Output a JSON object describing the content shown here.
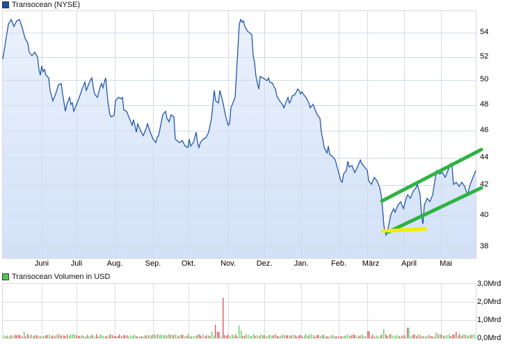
{
  "price_chart": {
    "legend_label": "Transocean (NYSE)",
    "legend_color": "#1a4f9c",
    "y_ticks": [
      "54",
      "52",
      "50",
      "48",
      "46",
      "44",
      "42",
      "40",
      "38"
    ],
    "x_ticks": [
      "Juni",
      "Juli",
      "Aug.",
      "Sep.",
      "Okt.",
      "Nov.",
      "Dez.",
      "Jan.",
      "Feb.",
      "März",
      "April",
      "Mai"
    ]
  },
  "volume_chart": {
    "legend_label": "Transocean Volumen in USD",
    "legend_color": "#55c455",
    "y_ticks": [
      "3,0Mrd",
      "2,0Mrd",
      "1,0Mrd",
      "0,0Mrd"
    ]
  },
  "annotations": {
    "upper_trend_color": "#2db341",
    "lower_trend_color": "#2db341",
    "support_line_color": "#f2ee00"
  },
  "chart_data": [
    {
      "type": "area",
      "title": "Transocean (NYSE)",
      "xlabel": "",
      "ylabel": "",
      "ylim": [
        37.5,
        55.5
      ],
      "grid": true,
      "legend_position": "top-left",
      "categories": [
        "Mai",
        "Juni",
        "Juli",
        "Aug.",
        "Sep.",
        "Okt.",
        "Nov.",
        "Dez.",
        "Jan.",
        "Feb.",
        "März",
        "April",
        "Mai"
      ],
      "series": [
        {
          "name": "Transocean (NYSE)",
          "values": [
            51.8,
            55.0,
            53.5,
            50.0,
            49.0,
            48.5,
            49.8,
            47.5,
            48.5,
            45.5,
            47.6,
            45.0,
            44.6,
            46.0,
            48.0,
            55.0,
            51.0,
            49.0,
            47.5,
            49.0,
            47.0,
            44.5,
            43.0,
            41.5,
            43.8,
            42.0,
            40.0,
            38.8,
            41.0,
            42.0,
            40.5,
            43.2,
            42.0,
            43.5,
            41.8,
            43.0
          ]
        }
      ],
      "annotations": [
        {
          "type": "trendline",
          "color": "green",
          "from": [
            "Mitte März",
            41.0
          ],
          "to": [
            "Ende Mai",
            44.5
          ]
        },
        {
          "type": "trendline",
          "color": "green",
          "from": [
            "Mitte März",
            39.0
          ],
          "to": [
            "Ende Mai",
            41.9
          ]
        },
        {
          "type": "support",
          "color": "yellow",
          "level": 39.0,
          "from": "Mitte März",
          "to": "Mitte April"
        }
      ]
    },
    {
      "type": "bar",
      "title": "Transocean Volumen in USD",
      "ylabel": "",
      "ylim": [
        0,
        3.0
      ],
      "unit": "Mrd",
      "grid": true,
      "notes": "Daily volume bars; green = up day, red = down day. Mostly 0.05–0.2 Mrd, peak ~2.2 Mrd in early November.",
      "series": [
        {
          "name": "Volume",
          "peak": 2.2,
          "typical": 0.1
        }
      ]
    }
  ]
}
